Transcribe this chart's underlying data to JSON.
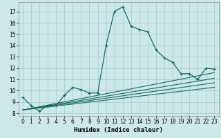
{
  "title": "",
  "xlabel": "Humidex (Indice chaleur)",
  "bg_color": "#cce8e8",
  "grid_color": "#aacece",
  "line_color": "#1a6a60",
  "xlim": [
    -0.5,
    23.5
  ],
  "ylim": [
    7.8,
    17.8
  ],
  "xticks": [
    0,
    1,
    2,
    3,
    4,
    5,
    6,
    7,
    8,
    9,
    10,
    11,
    12,
    13,
    14,
    15,
    16,
    17,
    18,
    19,
    20,
    21,
    22,
    23
  ],
  "yticks": [
    8,
    9,
    10,
    11,
    12,
    13,
    14,
    15,
    16,
    17
  ],
  "curve1_x": [
    0,
    1,
    2,
    3,
    4,
    5,
    6,
    7,
    8,
    9,
    10,
    11,
    12,
    13,
    14,
    15,
    16,
    17,
    18,
    19,
    20,
    21,
    22,
    23
  ],
  "curve1_y": [
    9.4,
    8.7,
    8.2,
    8.7,
    8.7,
    9.6,
    10.3,
    10.1,
    9.8,
    9.8,
    14.0,
    17.0,
    17.4,
    15.7,
    15.4,
    15.2,
    13.6,
    12.9,
    12.5,
    11.5,
    11.5,
    11.0,
    12.0,
    11.9
  ],
  "line1_x": [
    0,
    23
  ],
  "line1_y": [
    8.3,
    10.3
  ],
  "line2_x": [
    0,
    23
  ],
  "line2_y": [
    8.3,
    10.7
  ],
  "line3_x": [
    0,
    23
  ],
  "line3_y": [
    8.3,
    11.1
  ],
  "line4_x": [
    0,
    23
  ],
  "line4_y": [
    8.3,
    11.6
  ],
  "xlabel_fontsize": 6.5,
  "tick_fontsize": 5.5
}
